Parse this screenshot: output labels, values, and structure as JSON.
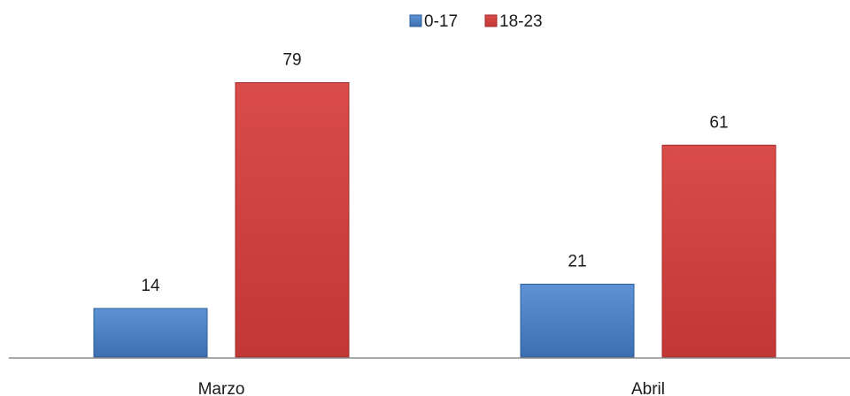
{
  "chart_data": {
    "type": "bar",
    "title": "",
    "xlabel": "",
    "ylabel": "",
    "categories": [
      "Marzo",
      "Abril"
    ],
    "series": [
      {
        "name": "0-17",
        "values": [
          14,
          21
        ],
        "color": "#4a7ebb"
      },
      {
        "name": "18-23",
        "values": [
          79,
          61
        ],
        "color": "#cc3b3b"
      }
    ],
    "ylim": [
      0,
      100
    ],
    "grid": false,
    "legend_position": "top-center",
    "data_labels": true,
    "colors": {
      "axis": "#8c8c8c",
      "text": "#1a1a1a"
    }
  }
}
